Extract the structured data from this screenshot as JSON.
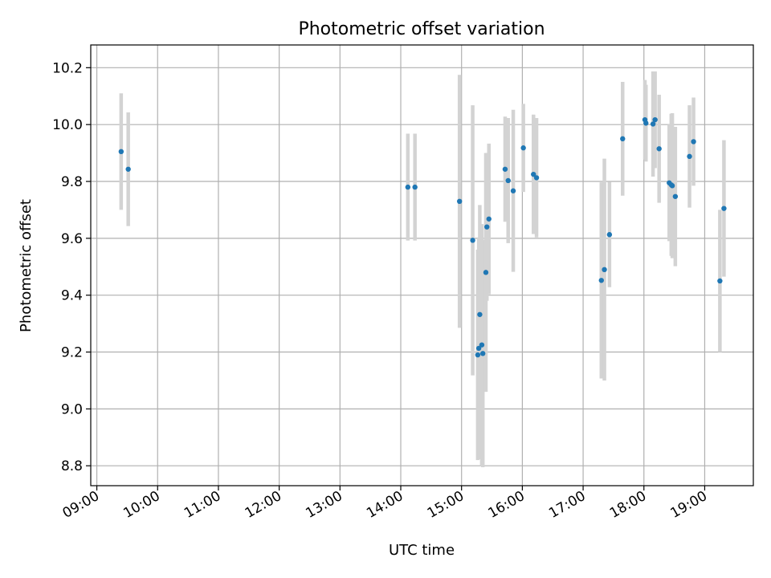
{
  "chart_data": {
    "type": "scatter",
    "title": "Photometric offset variation",
    "xlabel": "UTC time",
    "ylabel": "Photometric offset",
    "x_tick_labels": [
      "09:00",
      "10:00",
      "11:00",
      "12:00",
      "13:00",
      "14:00",
      "15:00",
      "16:00",
      "17:00",
      "18:00",
      "19:00"
    ],
    "y_ticks": [
      8.8,
      9.0,
      9.2,
      9.4,
      9.6,
      9.8,
      10.0,
      10.2
    ],
    "y_tick_labels": [
      "8.8",
      "9.0",
      "9.2",
      "9.4",
      "9.6",
      "9.8",
      "10.0",
      "10.2"
    ],
    "xlim": [
      "08:54",
      "19:48"
    ],
    "ylim": [
      8.73,
      10.28
    ],
    "grid": true,
    "colors": {
      "points": "#1f77b4",
      "error_bars": "#d3d3d3"
    },
    "points": [
      {
        "x": "09:24",
        "y": 9.905,
        "err": 0.205
      },
      {
        "x": "09:31",
        "y": 9.843,
        "err": 0.2
      },
      {
        "x": "14:07",
        "y": 9.78,
        "err": 0.188
      },
      {
        "x": "14:14",
        "y": 9.78,
        "err": 0.188
      },
      {
        "x": "14:58",
        "y": 9.73,
        "err": 0.445
      },
      {
        "x": "15:11",
        "y": 9.593,
        "err": 0.475
      },
      {
        "x": "15:16",
        "y": 9.19,
        "err": 0.37
      },
      {
        "x": "15:17",
        "y": 9.213,
        "err": 0.39
      },
      {
        "x": "15:18",
        "y": 9.332,
        "err": 0.385
      },
      {
        "x": "15:20",
        "y": 9.225,
        "err": 0.425
      },
      {
        "x": "15:21",
        "y": 9.195,
        "err": 0.4
      },
      {
        "x": "15:24",
        "y": 9.48,
        "err": 0.42
      },
      {
        "x": "15:25",
        "y": 9.64,
        "err": 0.26
      },
      {
        "x": "15:27",
        "y": 9.668,
        "err": 0.265
      },
      {
        "x": "15:43",
        "y": 9.843,
        "err": 0.185
      },
      {
        "x": "15:46",
        "y": 9.803,
        "err": 0.22
      },
      {
        "x": "15:51",
        "y": 9.767,
        "err": 0.285
      },
      {
        "x": "16:01",
        "y": 9.918,
        "err": 0.155
      },
      {
        "x": "16:11",
        "y": 9.825,
        "err": 0.21
      },
      {
        "x": "16:14",
        "y": 9.813,
        "err": 0.21
      },
      {
        "x": "17:18",
        "y": 9.452,
        "err": 0.345
      },
      {
        "x": "17:21",
        "y": 9.49,
        "err": 0.39
      },
      {
        "x": "17:26",
        "y": 9.613,
        "err": 0.185
      },
      {
        "x": "17:39",
        "y": 9.95,
        "err": 0.2
      },
      {
        "x": "18:01",
        "y": 10.017,
        "err": 0.14
      },
      {
        "x": "18:02",
        "y": 10.005,
        "err": 0.135
      },
      {
        "x": "18:09",
        "y": 10.002,
        "err": 0.185
      },
      {
        "x": "18:11",
        "y": 10.017,
        "err": 0.17
      },
      {
        "x": "18:15",
        "y": 9.915,
        "err": 0.19
      },
      {
        "x": "18:25",
        "y": 9.795,
        "err": 0.205
      },
      {
        "x": "18:27",
        "y": 9.788,
        "err": 0.25
      },
      {
        "x": "18:28",
        "y": 9.785,
        "err": 0.255
      },
      {
        "x": "18:31",
        "y": 9.747,
        "err": 0.245
      },
      {
        "x": "18:45",
        "y": 9.888,
        "err": 0.18
      },
      {
        "x": "18:49",
        "y": 9.94,
        "err": 0.155
      },
      {
        "x": "19:15",
        "y": 9.45,
        "err": 0.25
      },
      {
        "x": "19:19",
        "y": 9.705,
        "err": 0.24
      }
    ]
  }
}
